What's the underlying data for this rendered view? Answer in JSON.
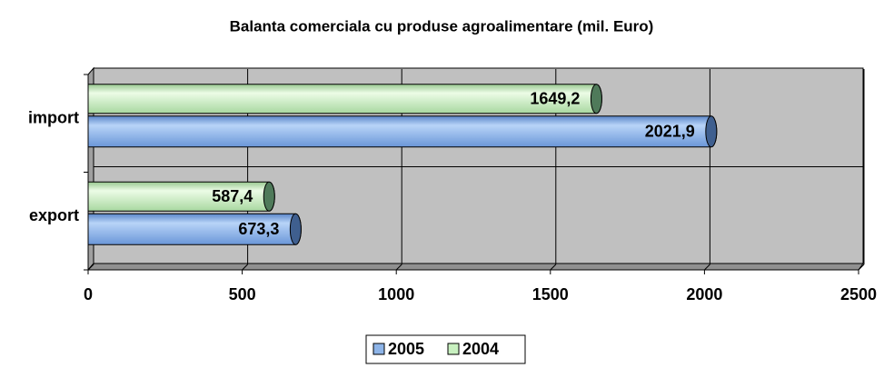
{
  "chart_data": {
    "type": "bar",
    "orientation": "horizontal",
    "title": "Balanta comerciala cu produse agroalimentare (mil. Euro)",
    "categories": [
      "import",
      "export"
    ],
    "series": [
      {
        "name": "2005",
        "color": "#8db4e8",
        "values": [
          2021.9,
          673.3
        ],
        "value_labels": [
          "2021,9",
          "673,3"
        ]
      },
      {
        "name": "2004",
        "color": "#c8f0c0",
        "values": [
          1649.2,
          587.4
        ],
        "value_labels": [
          "1649,2",
          "587,4"
        ]
      }
    ],
    "xlim": [
      0,
      2500
    ],
    "xticks": [
      0,
      500,
      1000,
      1500,
      2000,
      2500
    ],
    "grid": true,
    "legend": "bottom"
  }
}
